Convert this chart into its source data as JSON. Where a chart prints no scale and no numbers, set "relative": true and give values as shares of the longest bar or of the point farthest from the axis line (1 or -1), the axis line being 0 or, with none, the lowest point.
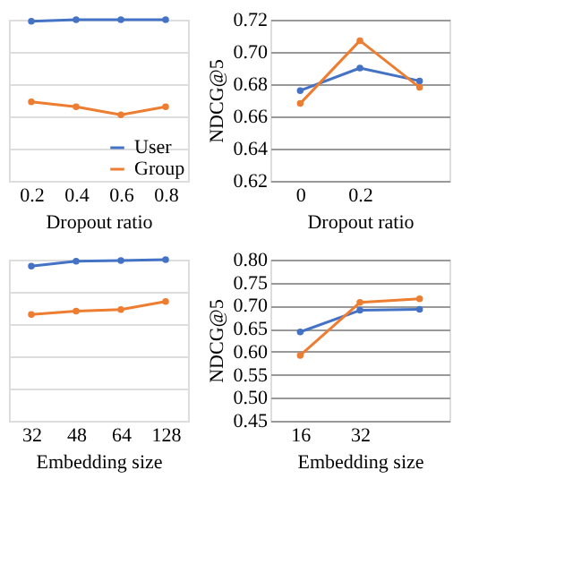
{
  "chart_data": [
    {
      "type": "line",
      "relative": true,
      "categories": [
        "0.2",
        "0.4",
        "0.6",
        "0.8"
      ],
      "xlabel": "Dropout ratio",
      "grid": "y",
      "legend": "bottom right",
      "marker": "circle",
      "line_style": "solid",
      "series": [
        {
          "name": "User",
          "color": "#4472c4",
          "values": [
            0.99,
            1.0,
            1.0,
            1.0
          ]
        },
        {
          "name": "Group",
          "color": "#ed7d31",
          "values": [
            0.49,
            0.46,
            0.41,
            0.46
          ]
        }
      ]
    },
    {
      "type": "line",
      "categories": [
        "0",
        "0.2",
        null
      ],
      "xlabel": "Dropout ratio",
      "ylabel": "NDCG@5",
      "ylim": [
        0.62,
        0.72
      ],
      "yticks": [
        0.62,
        0.64,
        0.66,
        0.68,
        {
          "value": 0.7,
          "label": "0.70"
        },
        0.72
      ],
      "grid": "y",
      "marker": "circle",
      "line_style": "solid",
      "series": [
        {
          "color": "#4472c4",
          "values": [
            0.676,
            0.69,
            0.682
          ]
        },
        {
          "color": "#ed7d31",
          "values": [
            0.668,
            0.707,
            0.678
          ]
        }
      ]
    },
    {
      "type": "line",
      "relative": true,
      "categories": [
        "32",
        "48",
        "64",
        "128"
      ],
      "xlabel": "Embedding size",
      "grid": "y",
      "marker": "circle",
      "line_style": "solid",
      "series": [
        {
          "color": "#4472c4",
          "values": [
            0.96,
            0.99,
            0.995,
            1.0
          ]
        },
        {
          "color": "#ed7d31",
          "values": [
            0.66,
            0.68,
            0.69,
            0.74
          ]
        }
      ]
    },
    {
      "type": "line",
      "categories": [
        "16",
        "32",
        null
      ],
      "xlabel": "Embedding size",
      "ylabel": "NDCG@5",
      "ylim": [
        0.45,
        0.8
      ],
      "yticks": [
        0.45,
        {
          "value": 0.5,
          "label": "0.50"
        },
        0.55,
        {
          "value": 0.6,
          "label": "0.60"
        },
        0.65,
        {
          "value": 0.7,
          "label": "0.70"
        },
        0.75,
        {
          "value": 0.8,
          "label": "0.80"
        }
      ],
      "grid": "y",
      "marker": "circle",
      "line_style": "solid",
      "series": [
        {
          "color": "#4472c4",
          "values": [
            0.643,
            0.69,
            0.692
          ]
        },
        {
          "color": "#ed7d31",
          "values": [
            0.592,
            0.707,
            0.715
          ]
        }
      ]
    }
  ]
}
